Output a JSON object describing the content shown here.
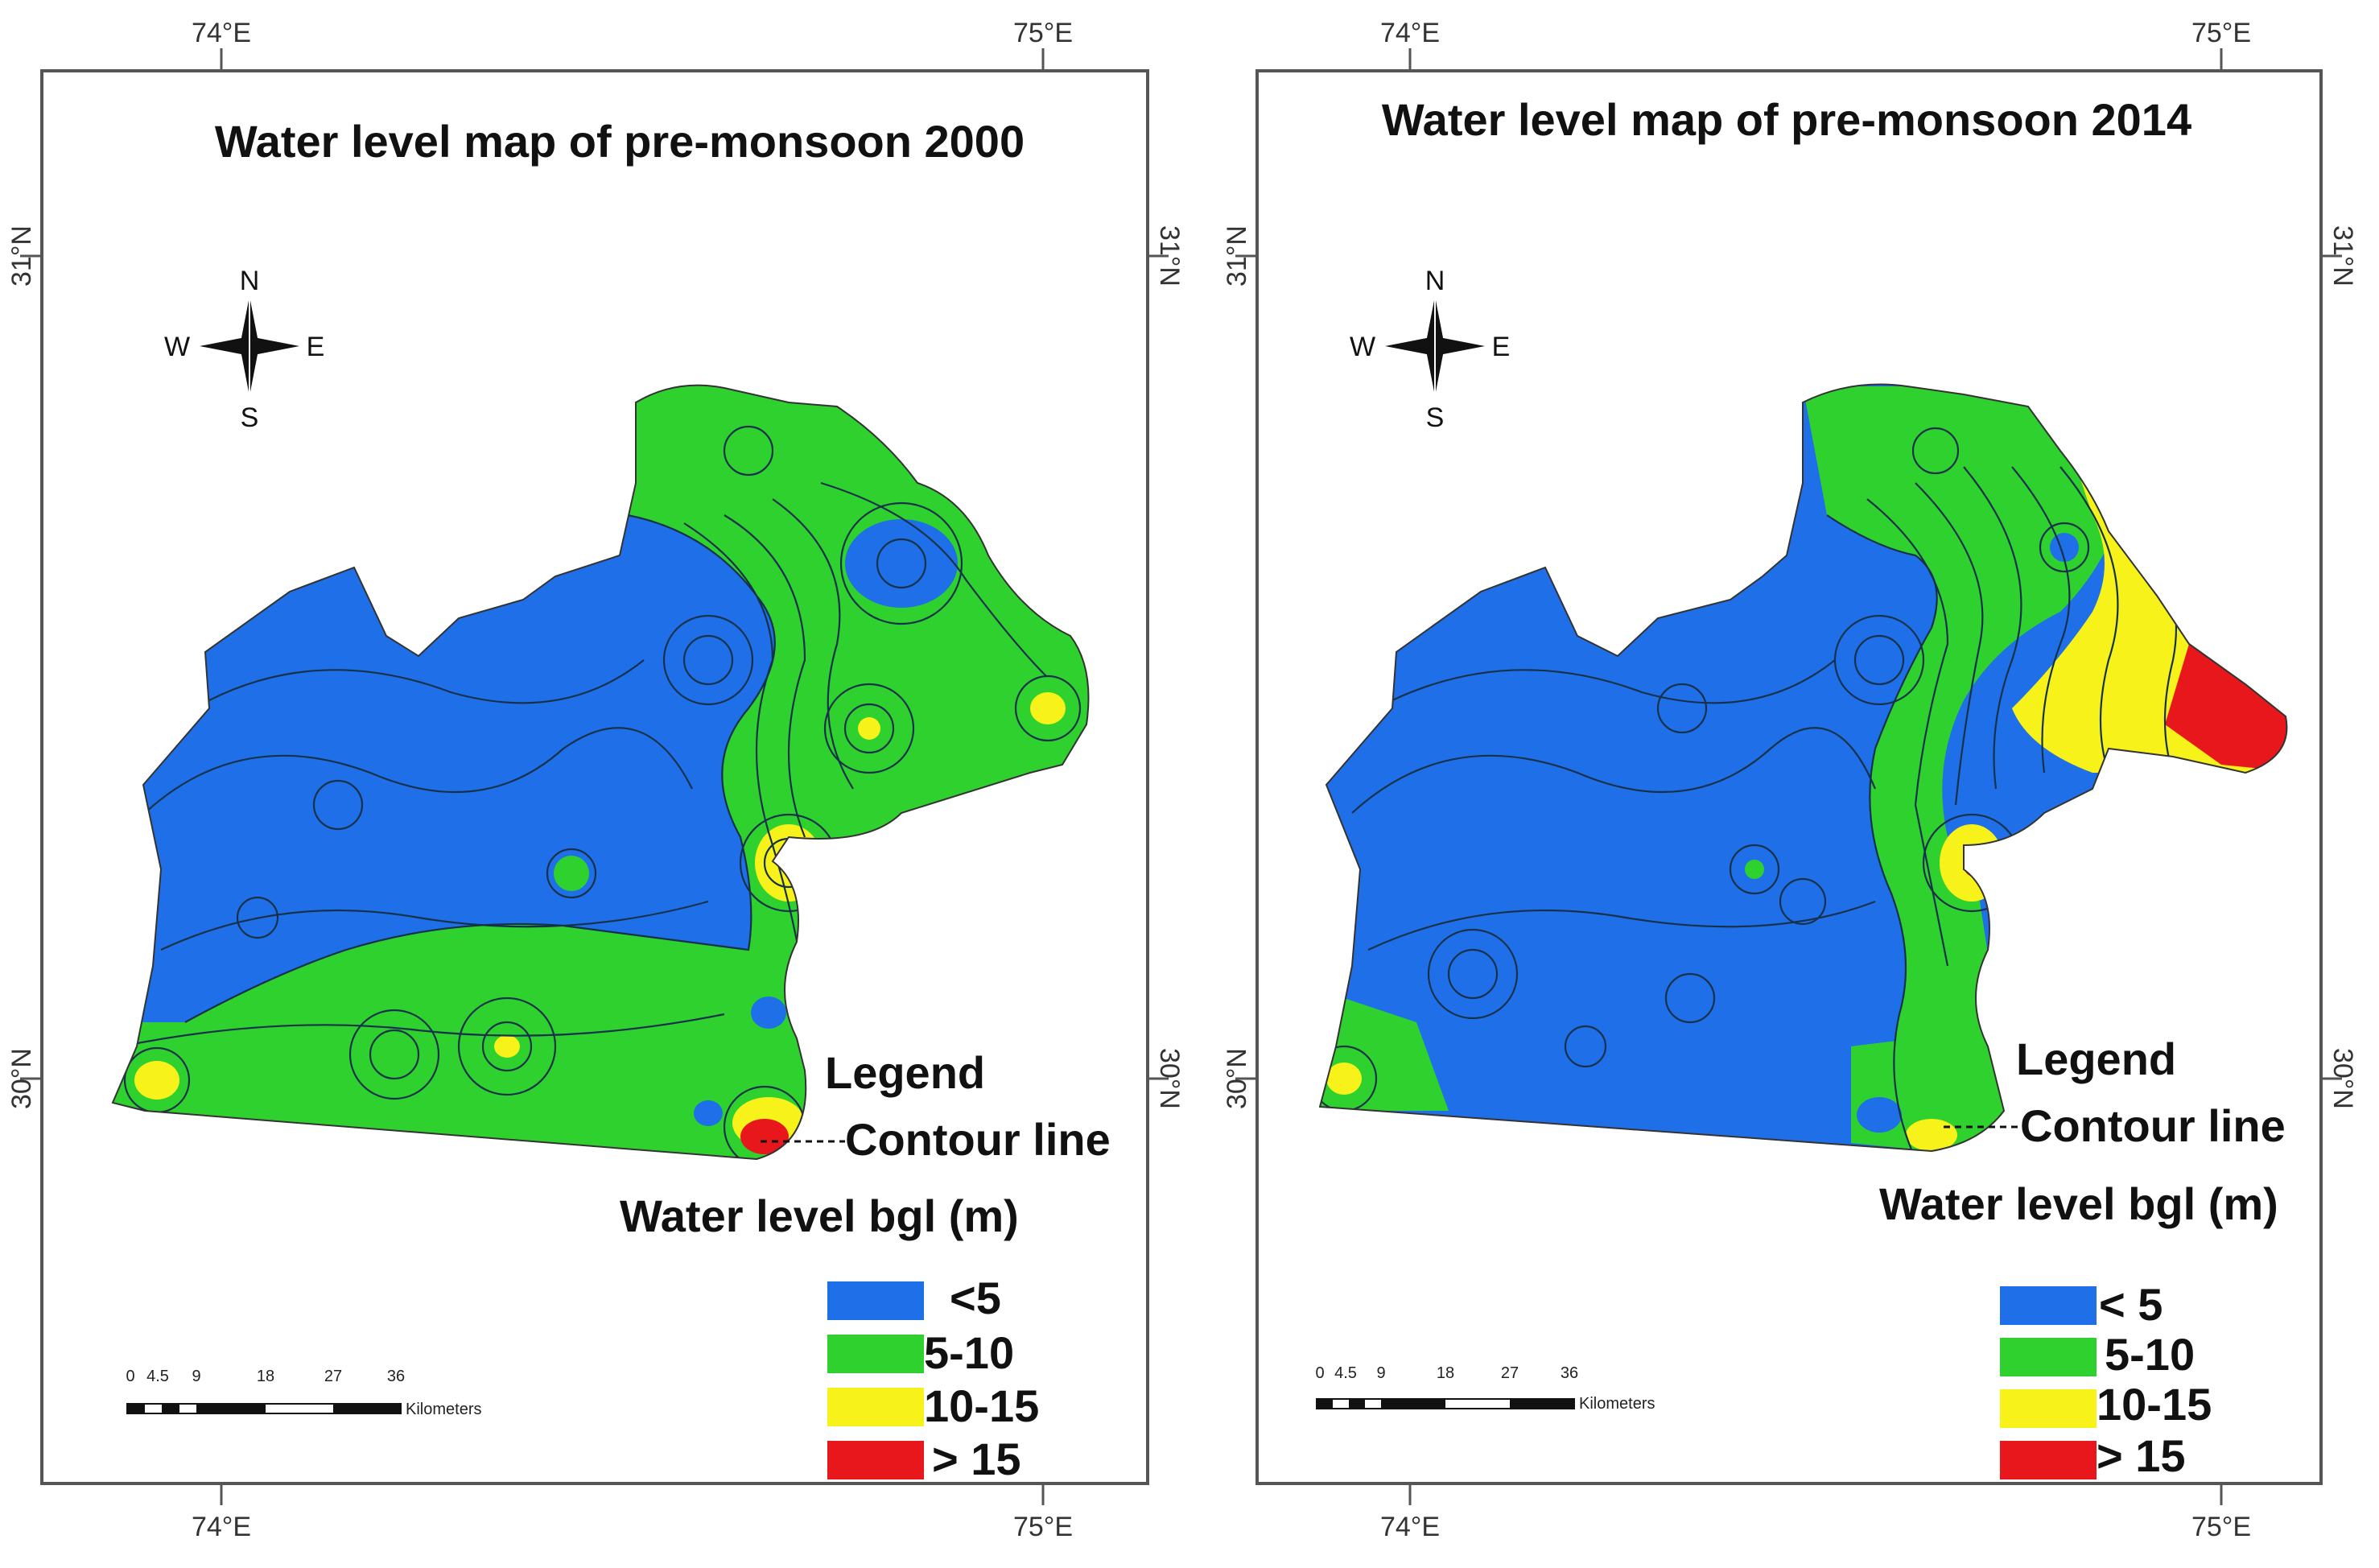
{
  "colors": {
    "lt5": "#1f6fe8",
    "5to10": "#2fd12f",
    "10to15": "#f7f21a",
    "gt15": "#e8171b",
    "contour": "#16324a",
    "frame": "#555555"
  },
  "maps": [
    {
      "title": "Water level map of pre-monsoon 2000",
      "lon_labels": [
        "74°E",
        "75°E"
      ],
      "lat_labels": [
        "31°N",
        "30°N"
      ],
      "compass": {
        "n": "N",
        "s": "S",
        "e": "E",
        "w": "W"
      },
      "legend": {
        "heading": "Legend",
        "contour": "Contour line",
        "subheading": "Water level bgl (m)",
        "classes": [
          "<5",
          "5-10",
          "10-15",
          "> 15"
        ]
      },
      "scale": {
        "ticks": [
          "0",
          "4.5",
          "9",
          "18",
          "27",
          "36"
        ],
        "unit": "Kilometers"
      }
    },
    {
      "title": "Water level map of pre-monsoon 2014",
      "lon_labels": [
        "74°E",
        "75°E"
      ],
      "lat_labels": [
        "31°N",
        "30°N"
      ],
      "compass": {
        "n": "N",
        "s": "S",
        "e": "E",
        "w": "W"
      },
      "legend": {
        "heading": "Legend",
        "contour": "Contour line",
        "subheading": "Water level bgl (m)",
        "classes": [
          "< 5",
          "5-10",
          "10-15",
          "> 15"
        ]
      },
      "scale": {
        "ticks": [
          "0",
          "4.5",
          "9",
          "18",
          "27",
          "36"
        ],
        "unit": "Kilometers"
      }
    }
  ]
}
